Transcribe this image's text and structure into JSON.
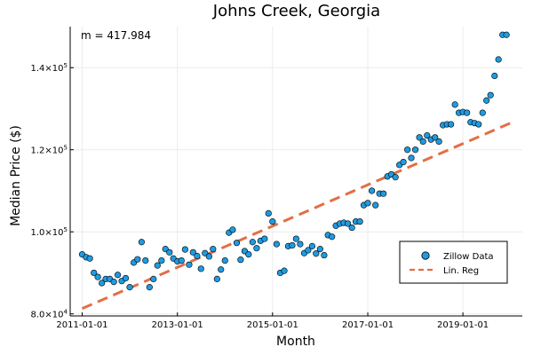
{
  "chart_data": {
    "type": "scatter",
    "title": "Johns Creek, Georgia",
    "xlabel": "Month",
    "ylabel": "Median Price ($)",
    "annotation": "m = 417.984",
    "xlim": [
      "2010-10-01",
      "2020-04-01"
    ],
    "ylim": [
      79500,
      150000
    ],
    "x_ticks": [
      "2011-01-01",
      "2013-01-01",
      "2015-01-01",
      "2017-01-01",
      "2019-01-01"
    ],
    "y_ticks": [
      {
        "value": 80000,
        "mantissa": "8.0",
        "exp": "4"
      },
      {
        "value": 100000,
        "mantissa": "1.0",
        "exp": "5"
      },
      {
        "value": 120000,
        "mantissa": "1.2",
        "exp": "5"
      },
      {
        "value": 140000,
        "mantissa": "1.4",
        "exp": "5"
      }
    ],
    "grid": true,
    "legend_position": "bottom-right",
    "colors": {
      "scatter": "#1f9be0",
      "line": "#e26f46",
      "axis": "#000000",
      "grid": "#ececec"
    },
    "series": [
      {
        "name": "Zillow Data",
        "type": "scatter",
        "x": [
          "2011-01-01",
          "2011-02-01",
          "2011-03-01",
          "2011-04-01",
          "2011-05-01",
          "2011-06-01",
          "2011-07-01",
          "2011-08-01",
          "2011-09-01",
          "2011-10-01",
          "2011-11-01",
          "2011-12-01",
          "2012-01-01",
          "2012-02-01",
          "2012-03-01",
          "2012-04-01",
          "2012-05-01",
          "2012-06-01",
          "2012-07-01",
          "2012-08-01",
          "2012-09-01",
          "2012-10-01",
          "2012-11-01",
          "2012-12-01",
          "2013-01-01",
          "2013-02-01",
          "2013-03-01",
          "2013-04-01",
          "2013-05-01",
          "2013-06-01",
          "2013-07-01",
          "2013-08-01",
          "2013-09-01",
          "2013-10-01",
          "2013-11-01",
          "2013-12-01",
          "2014-01-01",
          "2014-02-01",
          "2014-03-01",
          "2014-04-01",
          "2014-05-01",
          "2014-06-01",
          "2014-07-01",
          "2014-08-01",
          "2014-09-01",
          "2014-10-01",
          "2014-11-01",
          "2014-12-01",
          "2015-01-01",
          "2015-02-01",
          "2015-03-01",
          "2015-04-01",
          "2015-05-01",
          "2015-06-01",
          "2015-07-01",
          "2015-08-01",
          "2015-09-01",
          "2015-10-01",
          "2015-11-01",
          "2015-12-01",
          "2016-01-01",
          "2016-02-01",
          "2016-03-01",
          "2016-04-01",
          "2016-05-01",
          "2016-06-01",
          "2016-07-01",
          "2016-08-01",
          "2016-09-01",
          "2016-10-01",
          "2016-11-01",
          "2016-12-01",
          "2017-01-01",
          "2017-02-01",
          "2017-03-01",
          "2017-04-01",
          "2017-05-01",
          "2017-06-01",
          "2017-07-01",
          "2017-08-01",
          "2017-09-01",
          "2017-10-01",
          "2017-11-01",
          "2017-12-01",
          "2018-01-01",
          "2018-02-01",
          "2018-03-01",
          "2018-04-01",
          "2018-05-01",
          "2018-06-01",
          "2018-07-01",
          "2018-08-01",
          "2018-09-01",
          "2018-10-01",
          "2018-11-01",
          "2018-12-01",
          "2019-01-01",
          "2019-02-01",
          "2019-03-01",
          "2019-04-01",
          "2019-05-01",
          "2019-06-01",
          "2019-07-01",
          "2019-08-01",
          "2019-09-01",
          "2019-10-01",
          "2019-11-01",
          "2019-12-01"
        ],
        "y": [
          94500,
          93800,
          93500,
          90000,
          89000,
          87500,
          88500,
          88500,
          87800,
          89500,
          88000,
          88700,
          86500,
          92500,
          93300,
          97500,
          93000,
          86500,
          88500,
          91800,
          93000,
          95800,
          95000,
          93500,
          92800,
          93000,
          95700,
          92000,
          95000,
          94100,
          91000,
          94800,
          94000,
          95800,
          88500,
          90800,
          93000,
          99800,
          100500,
          97300,
          93200,
          95300,
          94500,
          97500,
          96000,
          97800,
          98300,
          104500,
          102500,
          97000,
          90000,
          90500,
          96500,
          96700,
          98300,
          97000,
          94800,
          95500,
          96500,
          94700,
          95800,
          94300,
          99200,
          98800,
          101500,
          102000,
          102200,
          102000,
          101000,
          102500,
          102500,
          106500,
          107000,
          110000,
          106500,
          109300,
          109300,
          113500,
          114000,
          113300,
          116300,
          117000,
          120000,
          118000,
          120000,
          123000,
          122000,
          123500,
          122500,
          123000,
          122000,
          126000,
          126200,
          126200,
          131000,
          129000,
          129200,
          129000,
          126700,
          126500,
          126200,
          129000,
          132000,
          133300,
          138000,
          142000,
          148000,
          148000
        ]
      },
      {
        "name": "Lin. Reg",
        "type": "line",
        "style": "dashed",
        "x": [
          "2011-01-01",
          "2020-01-01"
        ],
        "y": [
          81300,
          126500
        ]
      }
    ]
  }
}
